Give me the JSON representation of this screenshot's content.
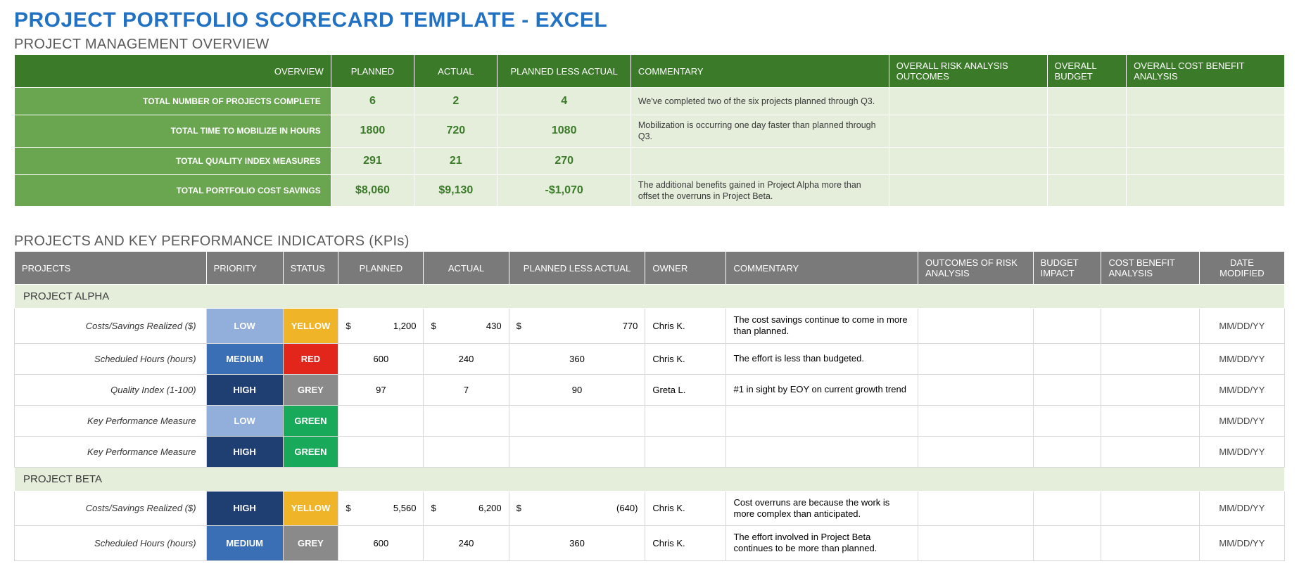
{
  "title": "PROJECT PORTFOLIO SCORECARD TEMPLATE - EXCEL",
  "colors": {
    "title": "#2272c3",
    "section": "#5a5a5a",
    "ov_header_bg": "#3b7a28",
    "ov_label_bg": "#6aa550",
    "ov_cell_bg": "#e4eedb",
    "ov_num_color": "#3b7a28",
    "kpi_header_bg": "#7a7a7a",
    "kpi_proj_bg": "#e4eedb",
    "priority": {
      "LOW": "#92aedb",
      "MEDIUM": "#3a6fb6",
      "HIGH": "#1f3f73"
    },
    "status": {
      "YELLOW": "#f0b429",
      "RED": "#e3261b",
      "GREY": "#8a8a8a",
      "GREEN": "#19a95b"
    }
  },
  "overview": {
    "section_title": "PROJECT MANAGEMENT OVERVIEW",
    "columns": {
      "overview": "OVERVIEW",
      "planned": "PLANNED",
      "actual": "ACTUAL",
      "pla": "PLANNED LESS ACTUAL",
      "commentary": "COMMENTARY",
      "risk": "OVERALL RISK ANALYSIS OUTCOMES",
      "budget": "OVERALL BUDGET",
      "cba": "OVERALL COST BENEFIT ANALYSIS"
    },
    "rows": [
      {
        "label": "TOTAL NUMBER OF PROJECTS COMPLETE",
        "planned": "6",
        "actual": "2",
        "pla": "4",
        "commentary": "We've completed two of the six projects planned through Q3.",
        "risk": "",
        "budget": "",
        "cba": ""
      },
      {
        "label": "TOTAL TIME TO MOBILIZE IN HOURS",
        "planned": "1800",
        "actual": "720",
        "pla": "1080",
        "commentary": "Mobilization is occurring one day faster than planned through Q3.",
        "risk": "",
        "budget": "",
        "cba": ""
      },
      {
        "label": "TOTAL QUALITY INDEX MEASURES",
        "planned": "291",
        "actual": "21",
        "pla": "270",
        "commentary": "",
        "risk": "",
        "budget": "",
        "cba": ""
      },
      {
        "label": "TOTAL PORTFOLIO COST SAVINGS",
        "planned": "$8,060",
        "actual": "$9,130",
        "pla": "-$1,070",
        "commentary": "The additional benefits gained in Project Alpha more than offset the overruns in Project Beta.",
        "risk": "",
        "budget": "",
        "cba": ""
      }
    ]
  },
  "kpis": {
    "section_title": "PROJECTS AND KEY PERFORMANCE INDICATORS (KPIs)",
    "columns": {
      "projects": "PROJECTS",
      "priority": "PRIORITY",
      "status": "STATUS",
      "planned": "PLANNED",
      "actual": "ACTUAL",
      "pla": "PLANNED LESS ACTUAL",
      "owner": "OWNER",
      "commentary": "COMMENTARY",
      "risk": "OUTCOMES OF RISK ANALYSIS",
      "budget": "BUDGET IMPACT",
      "cba": "COST BENEFIT ANALYSIS",
      "date": "DATE MODIFIED"
    },
    "groups": [
      {
        "name": "PROJECT ALPHA",
        "rows": [
          {
            "label": "Costs/Savings Realized ($)",
            "priority": "LOW",
            "status": "YELLOW",
            "planned_money": "1,200",
            "actual_money": "430",
            "pla_money": "770",
            "planned": "",
            "actual": "",
            "pla": "",
            "owner": "Chris K.",
            "commentary": "The cost savings continue to come in more than planned.",
            "risk": "",
            "budget": "",
            "cba": "",
            "date": "MM/DD/YY",
            "is_money": true
          },
          {
            "label": "Scheduled Hours (hours)",
            "priority": "MEDIUM",
            "status": "RED",
            "planned": "600",
            "actual": "240",
            "pla": "360",
            "owner": "Chris K.",
            "commentary": "The effort is less than budgeted.",
            "risk": "",
            "budget": "",
            "cba": "",
            "date": "MM/DD/YY",
            "is_money": false
          },
          {
            "label": "Quality Index (1-100)",
            "priority": "HIGH",
            "status": "GREY",
            "planned": "97",
            "actual": "7",
            "pla": "90",
            "owner": "Greta L.",
            "commentary": "#1 in sight by EOY on current growth trend",
            "risk": "",
            "budget": "",
            "cba": "",
            "date": "MM/DD/YY",
            "is_money": false
          },
          {
            "label": "Key Performance Measure",
            "priority": "LOW",
            "status": "GREEN",
            "planned": "",
            "actual": "",
            "pla": "",
            "owner": "",
            "commentary": "",
            "risk": "",
            "budget": "",
            "cba": "",
            "date": "MM/DD/YY",
            "is_money": false
          },
          {
            "label": "Key Performance Measure",
            "priority": "HIGH",
            "status": "GREEN",
            "planned": "",
            "actual": "",
            "pla": "",
            "owner": "",
            "commentary": "",
            "risk": "",
            "budget": "",
            "cba": "",
            "date": "MM/DD/YY",
            "is_money": false
          }
        ]
      },
      {
        "name": "PROJECT BETA",
        "rows": [
          {
            "label": "Costs/Savings Realized ($)",
            "priority": "HIGH",
            "status": "YELLOW",
            "planned_money": "5,560",
            "actual_money": "6,200",
            "pla_money": "(640)",
            "planned": "",
            "actual": "",
            "pla": "",
            "owner": "Chris K.",
            "commentary": "Cost overruns are because the work is more complex than anticipated.",
            "risk": "",
            "budget": "",
            "cba": "",
            "date": "MM/DD/YY",
            "is_money": true
          },
          {
            "label": "Scheduled Hours (hours)",
            "priority": "MEDIUM",
            "status": "GREY",
            "planned": "600",
            "actual": "240",
            "pla": "360",
            "owner": "Chris K.",
            "commentary": "The effort involved in Project Beta continues to be more than planned.",
            "risk": "",
            "budget": "",
            "cba": "",
            "date": "MM/DD/YY",
            "is_money": false
          }
        ]
      }
    ]
  },
  "col_widths": {
    "overview": [
      380,
      100,
      100,
      160,
      310,
      190,
      95,
      190
    ],
    "kpi": [
      225,
      90,
      65,
      100,
      100,
      160,
      95,
      225,
      135,
      80,
      115,
      100
    ]
  }
}
